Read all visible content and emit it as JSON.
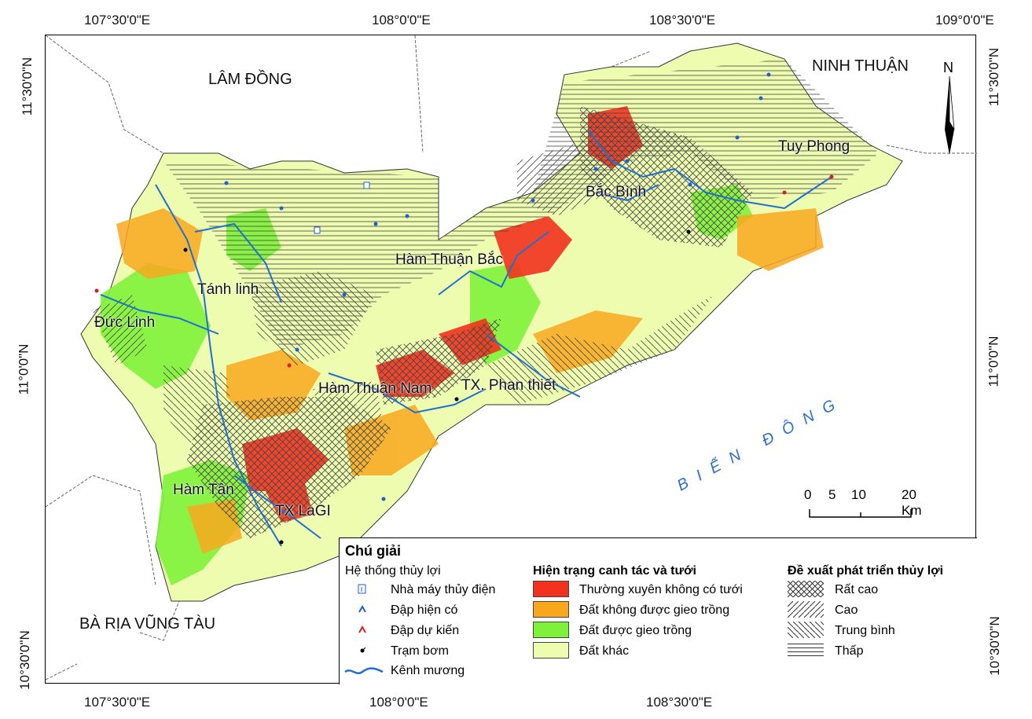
{
  "coords": {
    "top": [
      "107°30'0\"E",
      "108°0'0\"E",
      "108°30'0\"E",
      "109°0'0\"E"
    ],
    "bottom": [
      "107°30'0\"E",
      "108°0'0\"E",
      "108°30'0\"E"
    ],
    "left": [
      "11°30'0\"N",
      "11°0'0\"N",
      "10°30'0\"N"
    ],
    "right": [
      "11°30'0\"N",
      "11°0'0\"N",
      "10°30'0\"N"
    ]
  },
  "provinces": {
    "lam_dong": "LÂM ĐỒNG",
    "ninh_thuan": "NINH THUẬN",
    "ba_ria": "BÀ RỊA VŨNG TÀU",
    "sea": "BIỂN ĐÔNG"
  },
  "districts": {
    "tuy_phong": "Tuy Phong",
    "bac_binh": "Bắc Bình",
    "ham_thuan_bac": "Hàm Thuận Bắc",
    "tanh_linh": "Tánh linh",
    "duc_linh": "Đức Linh",
    "ham_thuan_nam": "Hàm Thuận Nam",
    "phan_thiet": "TX. Phan thiết",
    "ham_tan": "Hàm Tân",
    "lagi": "TX LaGI"
  },
  "north_arrow": "N",
  "scale": {
    "ticks": [
      "0",
      "5",
      "10",
      "20 Km"
    ]
  },
  "legend": {
    "title": "Chú giải",
    "irrigation": {
      "heading": "Hệ thống thủy lợi",
      "items": [
        "Nhà máy thủy điện",
        "Đập hiện có",
        "Đập dự kiến",
        "Trạm bơm",
        "Kênh mương"
      ]
    },
    "landuse": {
      "heading": "Hiện trạng canh tác và tưới",
      "items": [
        "Thường xuyên không có tưới",
        "Đất không được gieo trồng",
        "Đất được gieo trồng",
        "Đất khác"
      ],
      "colors": [
        "#f2321e",
        "#f9a81e",
        "#7ef23a",
        "#eefcb0"
      ]
    },
    "proposal": {
      "heading": "Đề xuất phát triển thủy lợi",
      "items": [
        "Rất cao",
        "Cao",
        "Trung bình",
        "Thấp"
      ]
    }
  },
  "colors": {
    "river": "#1f6fd0",
    "dam_existing": "#1f5fd0",
    "dam_planned": "#d81e1e",
    "hatch": "#333333",
    "sea_label": "#2a6fc9"
  }
}
